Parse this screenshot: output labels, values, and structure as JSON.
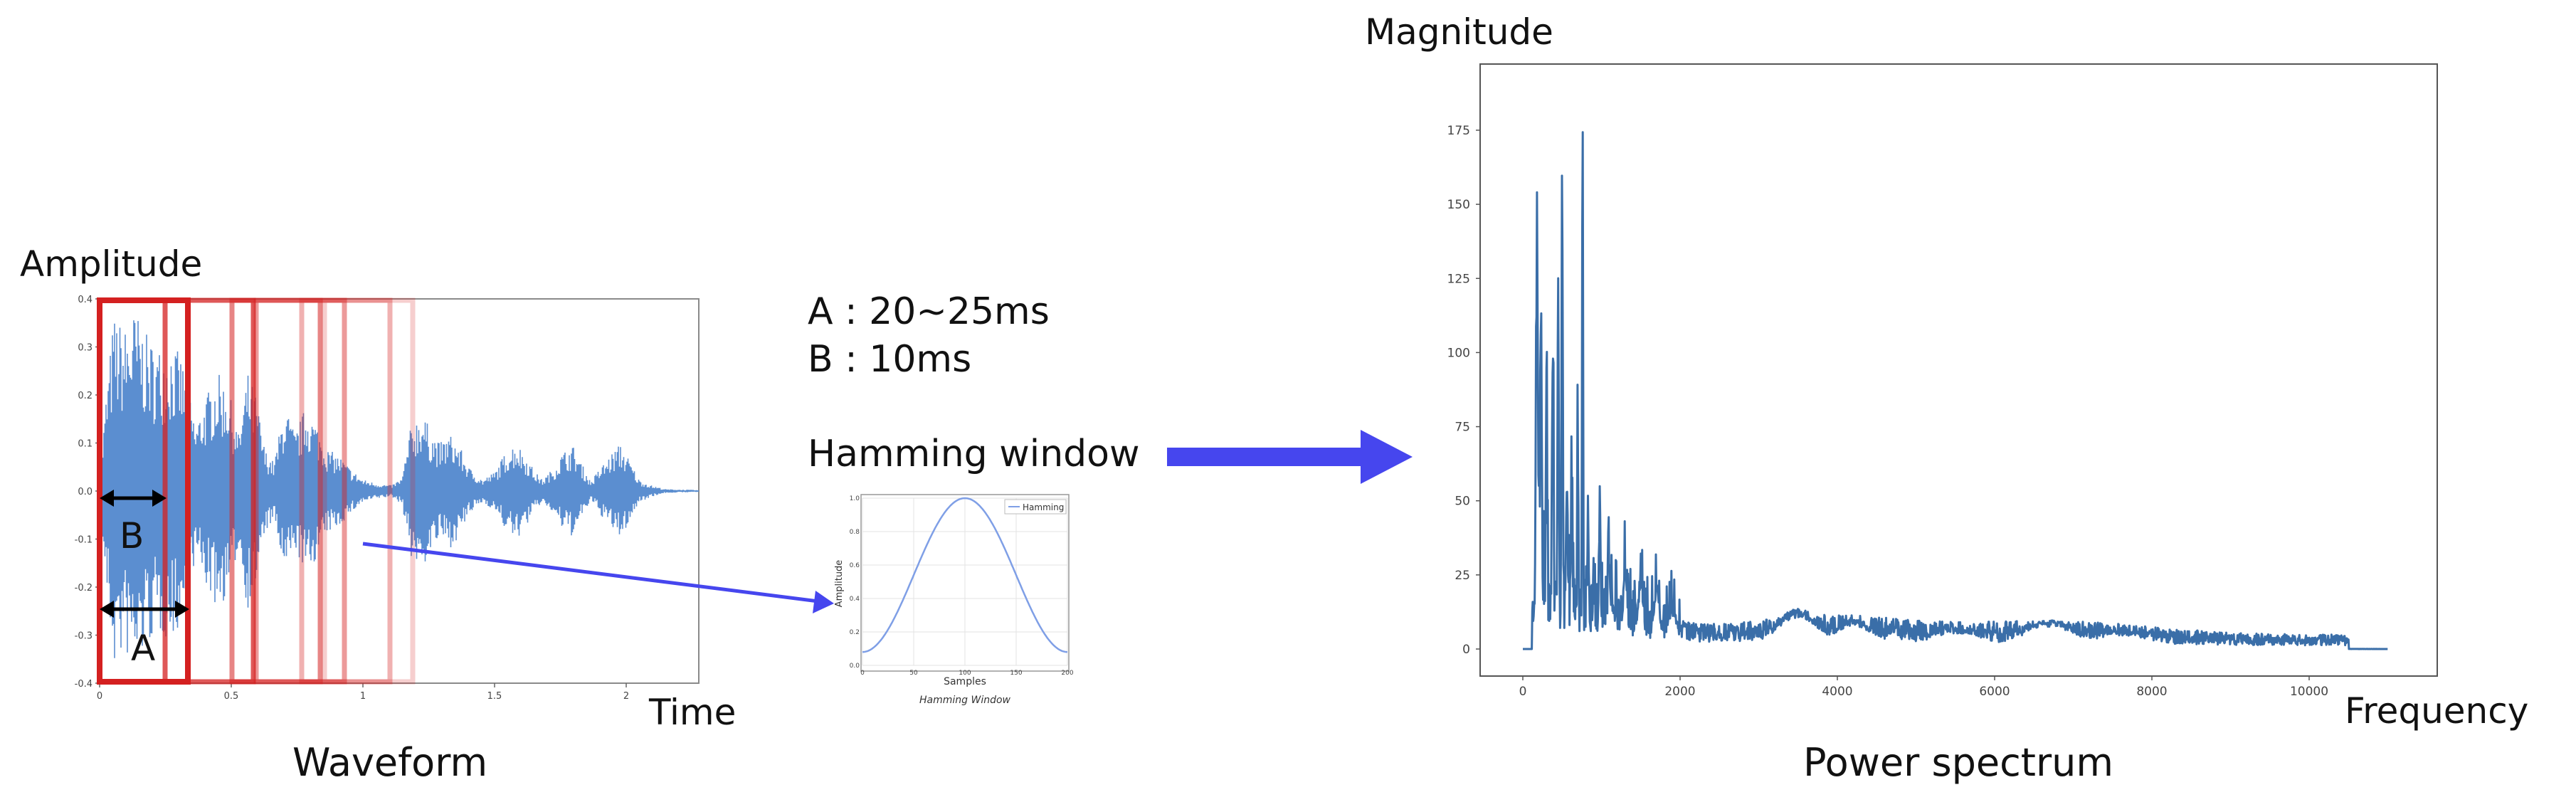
{
  "waveform": {
    "ylabel": "Amplitude",
    "xlabel": "Time",
    "caption": "Waveform",
    "y_ticks": [
      "0.4",
      "0.3",
      "0.2",
      "0.1",
      "0.0",
      "-0.1",
      "-0.2",
      "-0.3",
      "-0.4"
    ],
    "x_ticks": [
      "0",
      "0.5",
      "1",
      "1.5",
      "2"
    ],
    "label_a": "A",
    "label_b": "B",
    "wave_color": "#5b8ed0",
    "frame_color": "#d42020"
  },
  "parameters": {
    "line_a": "A : 20~25ms",
    "line_b": "B : 10ms"
  },
  "hamming": {
    "title": "Hamming window",
    "legend": "Hamming",
    "xlabel": "Samples",
    "ylabel": "Amplitude",
    "caption": "Hamming Window",
    "y_ticks": [
      "1.0",
      "0.8",
      "0.6",
      "0.4",
      "0.2",
      "0.0"
    ],
    "x_ticks": [
      "0",
      "50",
      "100",
      "150",
      "200"
    ],
    "curve_color": "#7f9fe6"
  },
  "arrow_color": "#4646ee",
  "spectrum": {
    "ylabel": "Magnitude",
    "xlabel": "Frequency",
    "caption": "Power spectrum",
    "y_ticks": [
      "175",
      "150",
      "125",
      "100",
      "75",
      "50",
      "25",
      "0"
    ],
    "x_ticks": [
      "0",
      "2000",
      "4000",
      "6000",
      "8000",
      "10000"
    ],
    "line_color": "#3a6ea8"
  }
}
